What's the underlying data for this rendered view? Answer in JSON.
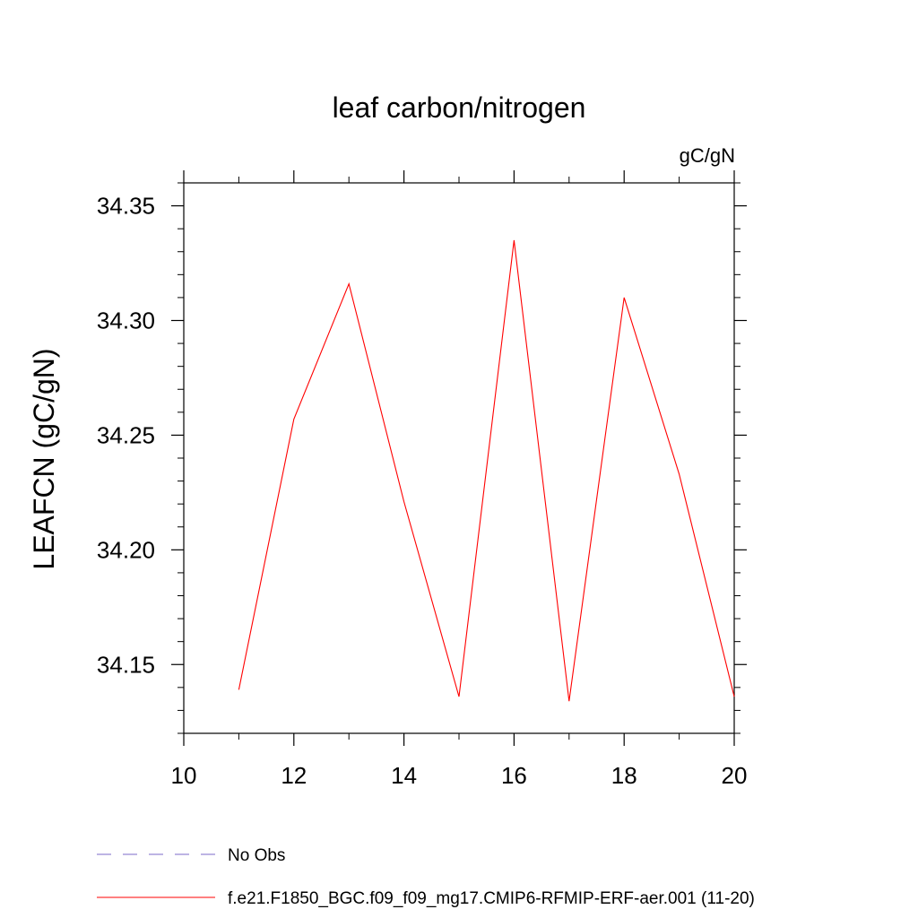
{
  "chart_data": {
    "type": "line",
    "title": "leaf carbon/nitrogen",
    "units_label": "gC/gN",
    "ylabel": "LEAFCN  (gC/gN)",
    "xlabel": "",
    "xlim": [
      10,
      20
    ],
    "ylim": [
      34.12,
      34.36
    ],
    "x_ticks": [
      10,
      12,
      14,
      16,
      18,
      20
    ],
    "x_minor_ticks": [
      11,
      13,
      15,
      17,
      19
    ],
    "y_ticks": [
      34.15,
      34.2,
      34.25,
      34.3,
      34.35
    ],
    "y_tick_labels": [
      "34.15",
      "34.20",
      "34.25",
      "34.30",
      "34.35"
    ],
    "y_minor_step": 0.01,
    "grid": false,
    "series": [
      {
        "name": "f.e21.F1850_BGC.f09_f09_mg17.CMIP6-RFMIP-ERF-aer.001 (11-20)",
        "color": "#ff0000",
        "dash": "solid",
        "x": [
          11,
          12,
          13,
          14,
          15,
          16,
          17,
          18,
          19,
          20
        ],
        "y": [
          34.139,
          34.257,
          34.316,
          34.221,
          34.136,
          34.335,
          34.134,
          34.31,
          34.233,
          34.136
        ]
      }
    ],
    "legend": {
      "placement": "bottom-left",
      "entries": [
        {
          "label": "No Obs",
          "color": "#7b68c8",
          "dash": "dashed"
        },
        {
          "label": "f.e21.F1850_BGC.f09_f09_mg17.CMIP6-RFMIP-ERF-aer.001 (11-20)",
          "color": "#ff0000",
          "dash": "solid"
        }
      ]
    }
  }
}
